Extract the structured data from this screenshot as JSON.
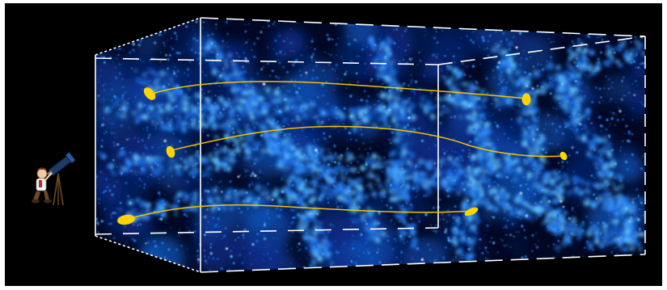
{
  "scene": {
    "background_color": "#000000",
    "frame_color": "#ffffff",
    "web_colors": [
      "#0a2e8a",
      "#1565d8",
      "#2f8cff",
      "#5fc3ff"
    ],
    "ray_color": "#f2c200",
    "galaxy_color": "#ffd400",
    "observer": {
      "icon": "astronomer-with-telescope-icon"
    },
    "light_paths": [
      {
        "label": "upper-light-path"
      },
      {
        "label": "middle-light-path"
      },
      {
        "label": "lower-light-path"
      }
    ]
  }
}
